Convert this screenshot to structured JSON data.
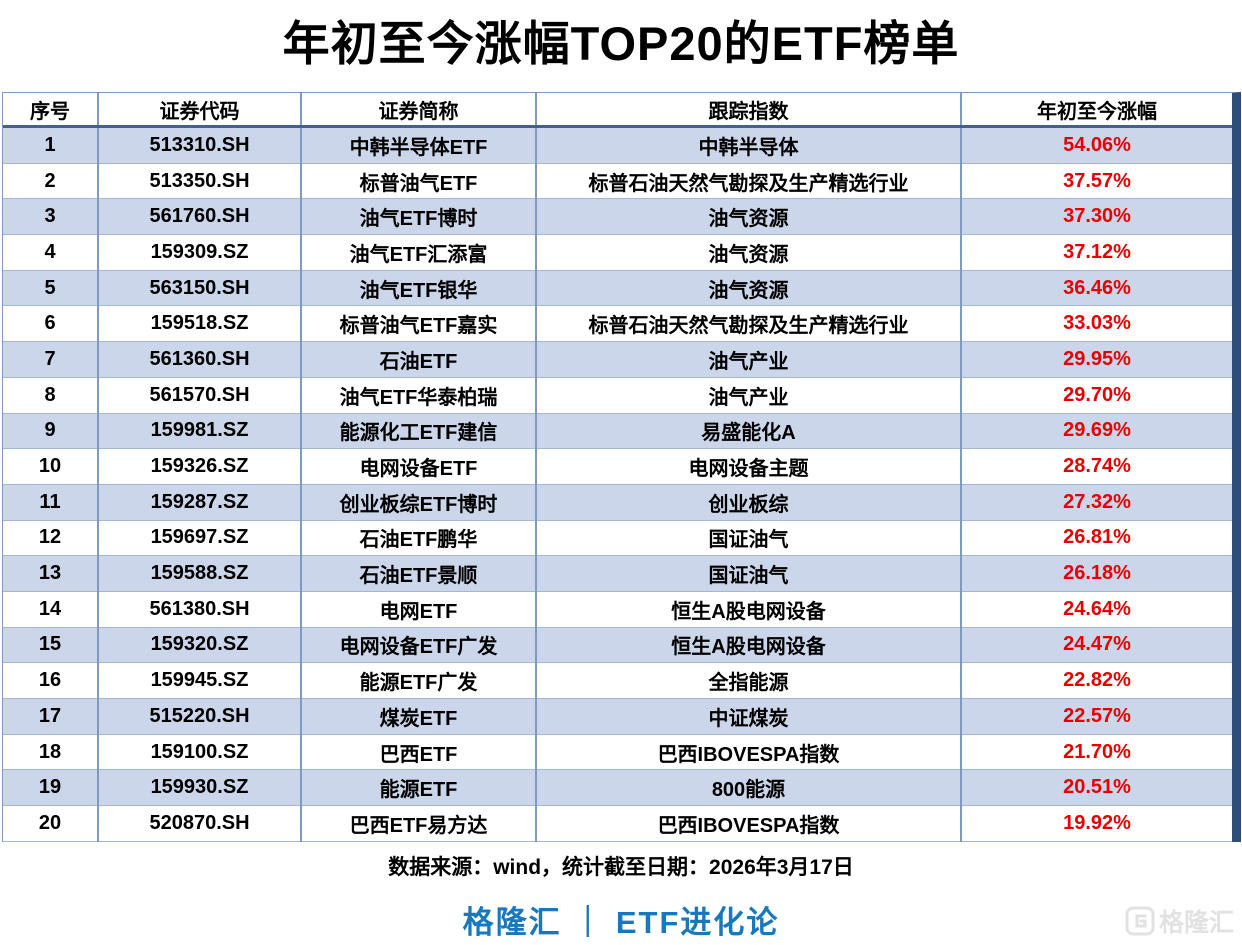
{
  "title": "年初至今涨幅TOP20的ETF榜单",
  "chart_data": {
    "type": "table",
    "title": "年初至今涨幅TOP20的ETF榜单",
    "columns": [
      "序号",
      "证券代码",
      "证券简称",
      "跟踪指数",
      "年初至今涨幅"
    ],
    "rows": [
      [
        "1",
        "513310.SH",
        "中韩半导体ETF",
        "中韩半导体",
        "54.06%"
      ],
      [
        "2",
        "513350.SH",
        "标普油气ETF",
        "标普石油天然气勘探及生产精选行业",
        "37.57%"
      ],
      [
        "3",
        "561760.SH",
        "油气ETF博时",
        "油气资源",
        "37.30%"
      ],
      [
        "4",
        "159309.SZ",
        "油气ETF汇添富",
        "油气资源",
        "37.12%"
      ],
      [
        "5",
        "563150.SH",
        "油气ETF银华",
        "油气资源",
        "36.46%"
      ],
      [
        "6",
        "159518.SZ",
        "标普油气ETF嘉实",
        "标普石油天然气勘探及生产精选行业",
        "33.03%"
      ],
      [
        "7",
        "561360.SH",
        "石油ETF",
        "油气产业",
        "29.95%"
      ],
      [
        "8",
        "561570.SH",
        "油气ETF华泰柏瑞",
        "油气产业",
        "29.70%"
      ],
      [
        "9",
        "159981.SZ",
        "能源化工ETF建信",
        "易盛能化A",
        "29.69%"
      ],
      [
        "10",
        "159326.SZ",
        "电网设备ETF",
        "电网设备主题",
        "28.74%"
      ],
      [
        "11",
        "159287.SZ",
        "创业板综ETF博时",
        "创业板综",
        "27.32%"
      ],
      [
        "12",
        "159697.SZ",
        "石油ETF鹏华",
        "国证油气",
        "26.81%"
      ],
      [
        "13",
        "159588.SZ",
        "石油ETF景顺",
        "国证油气",
        "26.18%"
      ],
      [
        "14",
        "561380.SH",
        "电网ETF",
        "恒生A股电网设备",
        "24.64%"
      ],
      [
        "15",
        "159320.SZ",
        "电网设备ETF广发",
        "恒生A股电网设备",
        "24.47%"
      ],
      [
        "16",
        "159945.SZ",
        "能源ETF广发",
        "全指能源",
        "22.82%"
      ],
      [
        "17",
        "515220.SH",
        "煤炭ETF",
        "中证煤炭",
        "22.57%"
      ],
      [
        "18",
        "159100.SZ",
        "巴西ETF",
        "巴西IBOVESPA指数",
        "21.70%"
      ],
      [
        "19",
        "159930.SZ",
        "能源ETF",
        "800能源",
        "20.51%"
      ],
      [
        "20",
        "520870.SH",
        "巴西ETF易方达",
        "巴西IBOVESPA指数",
        "19.92%"
      ]
    ]
  },
  "footer": {
    "source_note": "数据来源：wind，统计截至日期：2026年3月17日",
    "brand": "格隆汇 ｜ ETF进化论",
    "watermark_text": "格隆汇"
  },
  "colors": {
    "row_alt": "#ccd6ea",
    "change_red": "#e80000",
    "brand_blue": "#1878be",
    "edge_navy": "#2e4d7b",
    "grid_blue": "#7d9bc1"
  }
}
